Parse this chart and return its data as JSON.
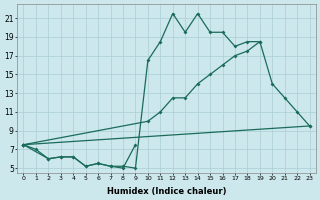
{
  "xlabel": "Humidex (Indice chaleur)",
  "bg_color": "#cce8ec",
  "grid_color": "#aacdd4",
  "line_color": "#1a6b5a",
  "xlim": [
    -0.5,
    23.5
  ],
  "ylim": [
    4.5,
    22.5
  ],
  "xticks": [
    0,
    1,
    2,
    3,
    4,
    5,
    6,
    7,
    8,
    9,
    10,
    11,
    12,
    13,
    14,
    15,
    16,
    17,
    18,
    19,
    20,
    21,
    22,
    23
  ],
  "yticks": [
    5,
    7,
    9,
    11,
    13,
    15,
    17,
    19,
    21
  ],
  "line1_x": [
    0,
    1,
    2,
    3,
    4,
    5,
    6,
    7,
    8,
    9,
    10,
    11,
    12,
    13,
    14,
    15,
    16,
    17,
    18,
    19
  ],
  "line1_y": [
    7.5,
    7.0,
    6.0,
    6.2,
    6.2,
    5.2,
    5.5,
    5.2,
    5.2,
    5.0,
    16.5,
    18.5,
    21.5,
    19.5,
    21.5,
    19.5,
    19.5,
    18.0,
    18.5,
    18.5
  ],
  "line2_x": [
    0,
    2,
    3,
    4,
    5,
    6,
    7,
    8,
    9
  ],
  "line2_y": [
    7.5,
    6.0,
    6.2,
    6.2,
    5.2,
    5.5,
    5.2,
    5.0,
    7.5
  ],
  "line3_x": [
    0,
    10,
    11,
    12,
    13,
    14,
    15,
    16,
    17,
    18,
    19,
    20,
    21,
    22,
    23
  ],
  "line3_y": [
    7.5,
    10.0,
    11.0,
    12.5,
    12.5,
    14.0,
    15.0,
    16.0,
    17.0,
    17.5,
    18.5,
    14.0,
    12.5,
    11.0,
    9.5
  ],
  "line4_x": [
    0,
    23
  ],
  "line4_y": [
    7.5,
    9.5
  ]
}
